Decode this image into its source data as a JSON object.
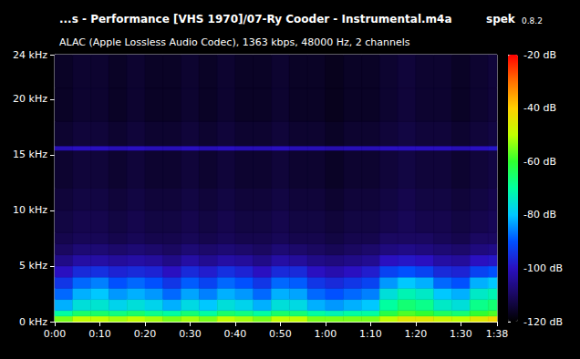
{
  "chart_data": {
    "type": "spectrogram",
    "title": "...s - Performance [VHS 1970]/07-Ry Cooder - Instrumental.m4a",
    "app": "spek",
    "version": "0.8.2",
    "subtitle": "ALAC (Apple Lossless Audio Codec), 1363 kbps, 48000 Hz, 2 channels",
    "grid": false,
    "xlim": [
      0,
      98
    ],
    "xticks": [
      {
        "value": 0,
        "label": "0:00"
      },
      {
        "value": 10,
        "label": "0:10"
      },
      {
        "value": 20,
        "label": "0:20"
      },
      {
        "value": 30,
        "label": "0:30"
      },
      {
        "value": 40,
        "label": "0:40"
      },
      {
        "value": 50,
        "label": "0:50"
      },
      {
        "value": 60,
        "label": "1:00"
      },
      {
        "value": 70,
        "label": "1:10"
      },
      {
        "value": 80,
        "label": "1:20"
      },
      {
        "value": 90,
        "label": "1:30"
      },
      {
        "value": 98,
        "label": "1:38"
      }
    ],
    "ylim": [
      0,
      24
    ],
    "yticks": [
      {
        "value": 0,
        "label": "0 kHz"
      },
      {
        "value": 5,
        "label": "5 kHz"
      },
      {
        "value": 10,
        "label": "10 kHz"
      },
      {
        "value": 15,
        "label": "15 kHz"
      },
      {
        "value": 20,
        "label": "20 kHz"
      },
      {
        "value": 24,
        "label": "24 kHz"
      }
    ],
    "time_edges": [
      0,
      4,
      8,
      12,
      16,
      20,
      24,
      28,
      32,
      36,
      40,
      44,
      48,
      52,
      56,
      60,
      64,
      68,
      72,
      76,
      80,
      84,
      88,
      92,
      96,
      98
    ],
    "freq_edges": [
      0,
      0.5,
      1,
      2,
      3,
      4,
      5,
      6,
      7,
      8,
      10,
      12,
      15.4,
      15.8,
      18,
      21,
      24
    ],
    "cells": [
      [
        -55,
        -50,
        -50,
        -52,
        -50,
        -52,
        -55,
        -52,
        -55,
        -50,
        -52,
        -55,
        -50,
        -50,
        -55,
        -55,
        -55,
        -55,
        -50,
        -45,
        -45,
        -48,
        -50,
        -45,
        -42
      ],
      [
        -70,
        -65,
        -65,
        -67,
        -65,
        -68,
        -70,
        -66,
        -70,
        -65,
        -67,
        -70,
        -65,
        -66,
        -70,
        -72,
        -70,
        -70,
        -62,
        -58,
        -60,
        -64,
        -66,
        -60,
        -58
      ],
      [
        -82,
        -76,
        -75,
        -78,
        -76,
        -78,
        -82,
        -77,
        -80,
        -76,
        -78,
        -82,
        -76,
        -77,
        -82,
        -84,
        -82,
        -80,
        -70,
        -66,
        -68,
        -74,
        -76,
        -68,
        -66
      ],
      [
        -88,
        -82,
        -80,
        -84,
        -82,
        -84,
        -88,
        -83,
        -86,
        -82,
        -84,
        -88,
        -82,
        -83,
        -88,
        -90,
        -88,
        -86,
        -76,
        -72,
        -74,
        -80,
        -82,
        -74,
        -72
      ],
      [
        -94,
        -88,
        -86,
        -90,
        -88,
        -90,
        -94,
        -89,
        -92,
        -88,
        -90,
        -94,
        -88,
        -89,
        -94,
        -96,
        -94,
        -92,
        -84,
        -80,
        -82,
        -88,
        -90,
        -82,
        -80
      ],
      [
        -100,
        -96,
        -95,
        -97,
        -96,
        -97,
        -100,
        -96,
        -98,
        -95,
        -97,
        -100,
        -96,
        -96,
        -100,
        -102,
        -100,
        -98,
        -92,
        -90,
        -92,
        -96,
        -97,
        -92,
        -90
      ],
      [
        -106,
        -103,
        -103,
        -104,
        -103,
        -104,
        -106,
        -103,
        -105,
        -103,
        -104,
        -106,
        -103,
        -104,
        -106,
        -107,
        -106,
        -105,
        -100,
        -99,
        -100,
        -103,
        -104,
        -100,
        -99
      ],
      [
        -110,
        -108,
        -108,
        -109,
        -108,
        -109,
        -110,
        -108,
        -109,
        -108,
        -109,
        -110,
        -108,
        -109,
        -110,
        -111,
        -110,
        -109,
        -107,
        -106,
        -107,
        -108,
        -109,
        -107,
        -106
      ],
      [
        -112,
        -111,
        -111,
        -112,
        -111,
        -112,
        -112,
        -111,
        -112,
        -111,
        -112,
        -112,
        -111,
        -112,
        -112,
        -113,
        -112,
        -112,
        -110,
        -110,
        -110,
        -111,
        -112,
        -110,
        -110
      ],
      [
        -113,
        -112,
        -112,
        -113,
        -112,
        -113,
        -113,
        -112,
        -113,
        -112,
        -113,
        -113,
        -112,
        -113,
        -113,
        -114,
        -113,
        -113,
        -112,
        -111,
        -112,
        -112,
        -113,
        -112,
        -111
      ],
      [
        -114,
        -113,
        -113,
        -114,
        -113,
        -114,
        -114,
        -113,
        -114,
        -113,
        -114,
        -114,
        -113,
        -114,
        -114,
        -115,
        -114,
        -114,
        -113,
        -112,
        -113,
        -113,
        -114,
        -113,
        -112
      ],
      [
        -115,
        -114,
        -114,
        -115,
        -114,
        -115,
        -115,
        -114,
        -115,
        -114,
        -115,
        -115,
        -114,
        -115,
        -115,
        -116,
        -115,
        -115,
        -114,
        -113,
        -114,
        -114,
        -115,
        -114,
        -113
      ],
      [
        -101,
        -100,
        -100,
        -101,
        -100,
        -101,
        -101,
        -100,
        -101,
        -100,
        -101,
        -101,
        -100,
        -101,
        -101,
        -102,
        -101,
        -101,
        -100,
        -100,
        -100,
        -100,
        -101,
        -100,
        -99
      ],
      [
        -115,
        -114,
        -114,
        -115,
        -114,
        -115,
        -115,
        -114,
        -115,
        -114,
        -115,
        -115,
        -114,
        -115,
        -115,
        -116,
        -115,
        -115,
        -114,
        -113,
        -114,
        -114,
        -115,
        -114,
        -113
      ],
      [
        -116,
        -115,
        -115,
        -116,
        -115,
        -116,
        -116,
        -115,
        -116,
        -115,
        -116,
        -116,
        -115,
        -116,
        -116,
        -117,
        -116,
        -116,
        -115,
        -114,
        -115,
        -115,
        -116,
        -115,
        -114
      ],
      [
        -116,
        -115,
        -115,
        -116,
        -115,
        -116,
        -116,
        -115,
        -116,
        -115,
        -116,
        -116,
        -115,
        -116,
        -116,
        -117,
        -116,
        -116,
        -115,
        -114,
        -115,
        -115,
        -116,
        -115,
        -114
      ]
    ],
    "colorbar": {
      "range": [
        -120,
        -20
      ],
      "ticks": [
        {
          "value": -20,
          "label": "-20 dB"
        },
        {
          "value": -40,
          "label": "-40 dB"
        },
        {
          "value": -60,
          "label": "-60 dB"
        },
        {
          "value": -80,
          "label": "-80 dB"
        },
        {
          "value": -100,
          "label": "-100 dB"
        },
        {
          "value": -120,
          "label": "-120 dB"
        }
      ]
    }
  }
}
